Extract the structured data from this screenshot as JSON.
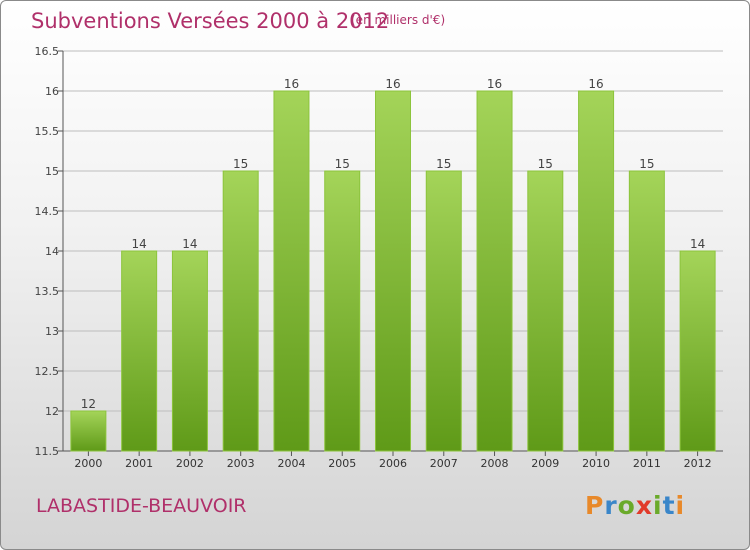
{
  "header": {
    "title": "Subventions Versées 2000 à 2012",
    "subtitle": "(en milliers d'€)"
  },
  "footer": {
    "commune": "LABASTIDE-BEAUVOIR",
    "logo": {
      "letters": [
        "P",
        "r",
        "o",
        "x",
        "i",
        "t",
        "i"
      ],
      "colors": [
        "#e8892a",
        "#3a86c9",
        "#6aaa2a",
        "#e13a2a",
        "#6aaa2a",
        "#3a86c9",
        "#e8892a"
      ]
    }
  },
  "chart_data": {
    "type": "bar",
    "categories": [
      "2000",
      "2001",
      "2002",
      "2003",
      "2004",
      "2005",
      "2006",
      "2007",
      "2008",
      "2009",
      "2010",
      "2011",
      "2012"
    ],
    "values": [
      12,
      14,
      14,
      15,
      16,
      15,
      16,
      15,
      16,
      15,
      16,
      15,
      14
    ],
    "data_labels": [
      "12",
      "14",
      "14",
      "15",
      "16",
      "15",
      "16",
      "15",
      "16",
      "15",
      "16",
      "15",
      "14"
    ],
    "ylim": [
      11.5,
      16.5
    ],
    "yticks": [
      "11.5",
      "12",
      "12.5",
      "13",
      "13.5",
      "14",
      "14.5",
      "15",
      "15.5",
      "16",
      "16.5"
    ],
    "grid": true,
    "colors": {
      "bar_top": "#a4d459",
      "bar_bottom": "#5f9a18",
      "grid": "#bdbdbd"
    }
  }
}
